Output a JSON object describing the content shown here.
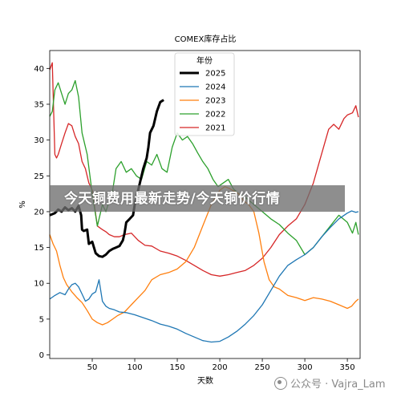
{
  "chart_data": {
    "type": "line",
    "title": "COMEX库存占比",
    "xlabel": "天数",
    "ylabel": "%",
    "xlim": [
      0,
      365
    ],
    "ylim": [
      -0.5,
      42.5
    ],
    "xticks": [
      50,
      100,
      150,
      200,
      250,
      300,
      350
    ],
    "yticks": [
      0,
      5,
      10,
      15,
      20,
      25,
      30,
      35,
      40
    ],
    "grid": false,
    "legend": {
      "title": "年份",
      "placement": "top-center"
    },
    "series": [
      {
        "name": "2025",
        "color": "#000000",
        "width": 3,
        "x": [
          0,
          6,
          10,
          14,
          18,
          22,
          26,
          30,
          34,
          37,
          38,
          40,
          44,
          46,
          50,
          54,
          58,
          62,
          66,
          70,
          74,
          78,
          82,
          86,
          88,
          90,
          94,
          98,
          100,
          102,
          106,
          110,
          114,
          116,
          118,
          122,
          126,
          130,
          134
        ],
        "y": [
          19.5,
          19.8,
          20.3,
          20,
          20.6,
          20.2,
          20.5,
          20,
          20.8,
          19.5,
          17.5,
          17.3,
          17.5,
          15.5,
          15.8,
          14.2,
          13.8,
          13.7,
          14,
          14.5,
          14.8,
          15,
          15.2,
          16,
          17,
          18.5,
          19,
          19.5,
          21,
          22,
          24,
          26,
          27.5,
          29,
          31,
          32,
          34,
          35.3,
          35.6
        ]
      },
      {
        "name": "2024",
        "color": "#1f77b4",
        "width": 1.3,
        "x": [
          0,
          6,
          12,
          18,
          22,
          26,
          30,
          34,
          38,
          42,
          46,
          50,
          54,
          58,
          62,
          66,
          70,
          76,
          82,
          90,
          100,
          110,
          120,
          130,
          140,
          150,
          160,
          170,
          180,
          190,
          200,
          210,
          220,
          230,
          240,
          250,
          260,
          270,
          280,
          290,
          300,
          310,
          320,
          330,
          340,
          345,
          350,
          355,
          360,
          363
        ],
        "y": [
          7.8,
          8.3,
          8.7,
          8.4,
          9.2,
          9.8,
          10,
          9.5,
          8.5,
          7.5,
          7.8,
          8.5,
          8.8,
          10.5,
          7.5,
          6.8,
          6.5,
          6.3,
          6,
          5.9,
          5.6,
          5.2,
          4.8,
          4.3,
          4,
          3.6,
          3,
          2.5,
          2,
          1.8,
          1.9,
          2.5,
          3.3,
          4.3,
          5.5,
          7,
          9,
          11,
          12.5,
          13.3,
          14,
          15,
          16.5,
          17.8,
          19,
          19.4,
          19.8,
          20.1,
          19.9,
          20
        ]
      },
      {
        "name": "2023",
        "color": "#ff7f0e",
        "width": 1.3,
        "x": [
          0,
          4,
          8,
          12,
          16,
          20,
          26,
          32,
          38,
          44,
          50,
          56,
          62,
          68,
          74,
          80,
          88,
          96,
          104,
          112,
          120,
          130,
          140,
          150,
          160,
          170,
          180,
          190,
          200,
          206,
          212,
          218,
          222,
          228,
          234,
          240,
          246,
          252,
          258,
          264,
          270,
          280,
          290,
          300,
          310,
          320,
          330,
          340,
          350,
          355,
          360,
          363
        ],
        "y": [
          16.8,
          15.5,
          14.5,
          12.5,
          10.8,
          9.8,
          8.8,
          8,
          7.3,
          6.2,
          5,
          4.5,
          4.2,
          4.5,
          5,
          5.5,
          6,
          7,
          8,
          9,
          10.5,
          11.2,
          11.5,
          12,
          13,
          15,
          18,
          21,
          23,
          23.5,
          23.2,
          22.8,
          22.5,
          21.5,
          21,
          20,
          17,
          13,
          10.5,
          9.5,
          9.2,
          8.3,
          8,
          7.6,
          8,
          7.8,
          7.5,
          7,
          6.5,
          6.8,
          7.5,
          7.8
        ]
      },
      {
        "name": "2022",
        "color": "#2ca02c",
        "width": 1.3,
        "x": [
          0,
          3,
          6,
          10,
          14,
          18,
          22,
          26,
          30,
          34,
          38,
          44,
          50,
          56,
          62,
          66,
          70,
          74,
          78,
          84,
          90,
          96,
          102,
          108,
          114,
          120,
          126,
          132,
          138,
          144,
          150,
          156,
          162,
          168,
          174,
          180,
          186,
          192,
          198,
          204,
          210,
          216,
          222,
          230,
          240,
          250,
          260,
          270,
          280,
          290,
          300,
          310,
          320,
          330,
          340,
          350,
          356,
          360,
          363
        ],
        "y": [
          33.3,
          34,
          37,
          38,
          36.5,
          35,
          36.5,
          37,
          38.3,
          36,
          31,
          28,
          22.5,
          18,
          21,
          20,
          21.5,
          23,
          26,
          27,
          25.5,
          26,
          25,
          24.5,
          27,
          26.5,
          28,
          26,
          25.5,
          29,
          31,
          30,
          30.5,
          29.5,
          28.2,
          27,
          26,
          24.5,
          23.5,
          24,
          24.5,
          23.2,
          22.5,
          22,
          21,
          20,
          19,
          18.2,
          17,
          16,
          14,
          15,
          16.5,
          18,
          19.5,
          18.5,
          17,
          18.5,
          16.8
        ]
      },
      {
        "name": "2021",
        "color": "#d62728",
        "width": 1.3,
        "x": [
          0,
          3,
          6,
          8,
          10,
          14,
          18,
          22,
          26,
          30,
          34,
          38,
          42,
          46,
          50,
          56,
          62,
          66,
          70,
          76,
          82,
          88,
          96,
          104,
          112,
          120,
          130,
          140,
          150,
          160,
          170,
          180,
          190,
          200,
          210,
          220,
          230,
          240,
          250,
          260,
          270,
          280,
          290,
          300,
          310,
          316,
          322,
          328,
          334,
          340,
          346,
          350,
          356,
          360,
          363
        ],
        "y": [
          39.8,
          40.8,
          28,
          27.5,
          28,
          29.5,
          31,
          32.3,
          32,
          30.5,
          29.5,
          27,
          26,
          24,
          23,
          18,
          17.5,
          17.2,
          16.8,
          16.5,
          16.5,
          16.8,
          17,
          16,
          15.3,
          15.2,
          14.5,
          14.2,
          13.8,
          13.2,
          12.5,
          11.8,
          11.2,
          11,
          11.2,
          11.5,
          11.8,
          12.5,
          13.5,
          15,
          16.8,
          18,
          19,
          21,
          24,
          26.5,
          29,
          31.5,
          32.2,
          31.5,
          33,
          33.5,
          33.8,
          34.8,
          33.2
        ]
      }
    ]
  },
  "banner": {
    "text": "今天铜费用最新走势/今天铜价行情"
  },
  "watermark": {
    "text": "公众号 · Vajra_Lam"
  }
}
